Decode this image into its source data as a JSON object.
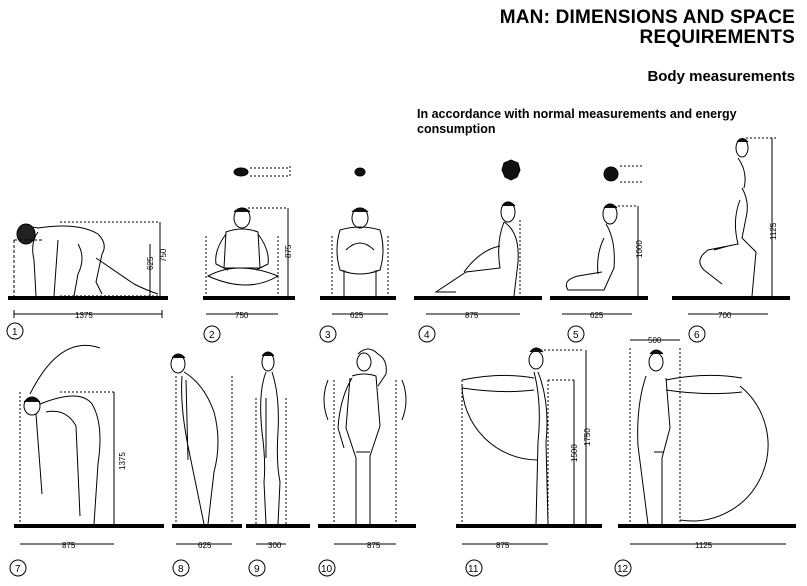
{
  "title": "MAN: DIMENSIONS AND SPACE REQUIREMENTS",
  "subtitle": "Body measurements",
  "note": "In accordance with normal measurements and energy consumption",
  "figures": [
    {
      "number": "1",
      "width": "1375",
      "height": "750",
      "inner_height": "625"
    },
    {
      "number": "2",
      "width": "750",
      "height": "875"
    },
    {
      "number": "3",
      "width": "625"
    },
    {
      "number": "4",
      "width": "875"
    },
    {
      "number": "5",
      "width": "625",
      "height": "1000"
    },
    {
      "number": "6",
      "width": "700",
      "height": "1125"
    },
    {
      "number": "7",
      "width": "875",
      "height": "1375"
    },
    {
      "number": "8",
      "width": "625"
    },
    {
      "number": "9",
      "width": "300"
    },
    {
      "number": "10",
      "width": "875"
    },
    {
      "number": "11",
      "width": "875",
      "height": "1750",
      "inner_height": "1500"
    },
    {
      "number": "12",
      "width": "1125",
      "reach": "500"
    }
  ]
}
